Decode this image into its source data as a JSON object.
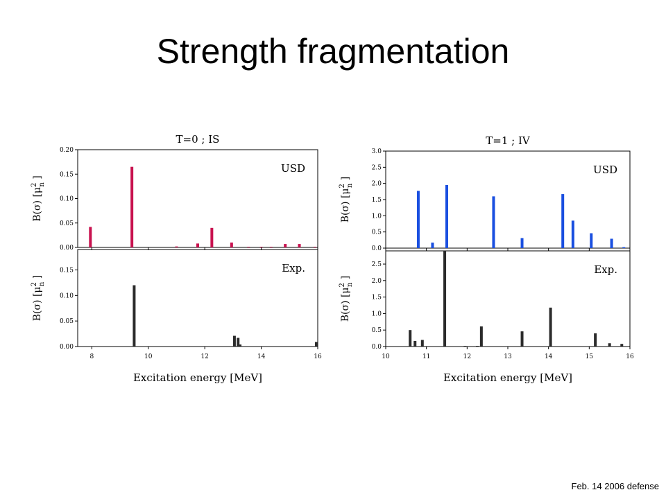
{
  "slide": {
    "title": "Strength fragmentation",
    "footer": "Feb. 14 2006 defense"
  },
  "colors": {
    "is": "#c8124f",
    "iv": "#1a4fe0",
    "exp": "#2b2b2b"
  },
  "chart_data": [
    {
      "type": "bar",
      "panel": "IS-top",
      "title": "T=0 ; IS",
      "annotation": "USD",
      "ylabel_base": "B(σ) [μ",
      "ylabel_sup": "2",
      "ylabel_sub": "n",
      "ylabel_end": " ]",
      "xlim": [
        7.5,
        16
      ],
      "ylim": [
        0,
        0.2
      ],
      "yticks": [
        0,
        0.05,
        0.1,
        0.15,
        0.2
      ],
      "ytick_labels": [
        "0.00",
        "0.05",
        "0.10",
        "0.15",
        "0.20"
      ],
      "x": [
        7.95,
        9.42,
        11.0,
        11.75,
        12.25,
        12.95,
        13.55,
        14.0,
        14.35,
        14.85,
        15.35,
        15.9
      ],
      "values": [
        0.042,
        0.165,
        0.002,
        0.008,
        0.04,
        0.01,
        0.001,
        0.001,
        0.001,
        0.007,
        0.007,
        0.001
      ]
    },
    {
      "type": "bar",
      "panel": "IS-bottom",
      "annotation": "Exp.",
      "ylabel_base": "B(σ) [μ",
      "ylabel_sup": "2",
      "ylabel_sub": "n",
      "ylabel_end": " ]",
      "xlabel": "Excitation energy [MeV]",
      "xlim": [
        7.5,
        16
      ],
      "ylim": [
        0,
        0.19
      ],
      "xticks": [
        8,
        10,
        12,
        14,
        16
      ],
      "yticks": [
        0,
        0.05,
        0.1,
        0.15
      ],
      "ytick_labels": [
        "0.00",
        "0.05",
        "0.10",
        "0.15"
      ],
      "x": [
        9.5,
        13.05,
        13.18,
        13.25,
        15.95
      ],
      "values": [
        0.12,
        0.021,
        0.017,
        0.004,
        0.009
      ]
    },
    {
      "type": "bar",
      "panel": "IV-top",
      "title": "T=1 ; IV",
      "annotation": "USD",
      "ylabel_base": "B(σ) [μ",
      "ylabel_sup": "2",
      "ylabel_sub": "n",
      "ylabel_end": " ]",
      "xlim": [
        10,
        16
      ],
      "ylim": [
        0,
        3.0
      ],
      "yticks": [
        0,
        0.5,
        1.0,
        1.5,
        2.0,
        2.5,
        3.0
      ],
      "ytick_labels": [
        "0.0",
        "0.5",
        "1.0",
        "1.5",
        "2.0",
        "2.5",
        "3.0"
      ],
      "x": [
        10.8,
        11.15,
        11.5,
        12.65,
        13.35,
        14.35,
        14.6,
        15.05,
        15.55,
        15.85
      ],
      "values": [
        1.77,
        0.17,
        1.95,
        1.6,
        0.31,
        1.67,
        0.85,
        0.46,
        0.29,
        0.03
      ]
    },
    {
      "type": "bar",
      "panel": "IV-bottom",
      "annotation": "Exp.",
      "ylabel_base": "B(σ) [μ",
      "ylabel_sup": "2",
      "ylabel_sub": "n",
      "ylabel_end": " ]",
      "xlabel": "Excitation energy [MeV]",
      "xlim": [
        10,
        16
      ],
      "ylim": [
        0,
        2.9
      ],
      "xticks": [
        10,
        11,
        12,
        13,
        14,
        15,
        16
      ],
      "yticks": [
        0,
        0.5,
        1.0,
        1.5,
        2.0,
        2.5
      ],
      "ytick_labels": [
        "0.0",
        "0.5",
        "1.0",
        "1.5",
        "2.0",
        "2.5"
      ],
      "x": [
        10.6,
        10.72,
        10.9,
        11.45,
        11.95,
        12.25,
        12.35,
        13.35,
        14.05,
        15.15,
        15.5,
        15.8
      ],
      "values": [
        0.5,
        0.17,
        0.2,
        2.9,
        0.02,
        0.02,
        0.61,
        0.46,
        1.18,
        0.4,
        0.1,
        0.08
      ]
    }
  ]
}
